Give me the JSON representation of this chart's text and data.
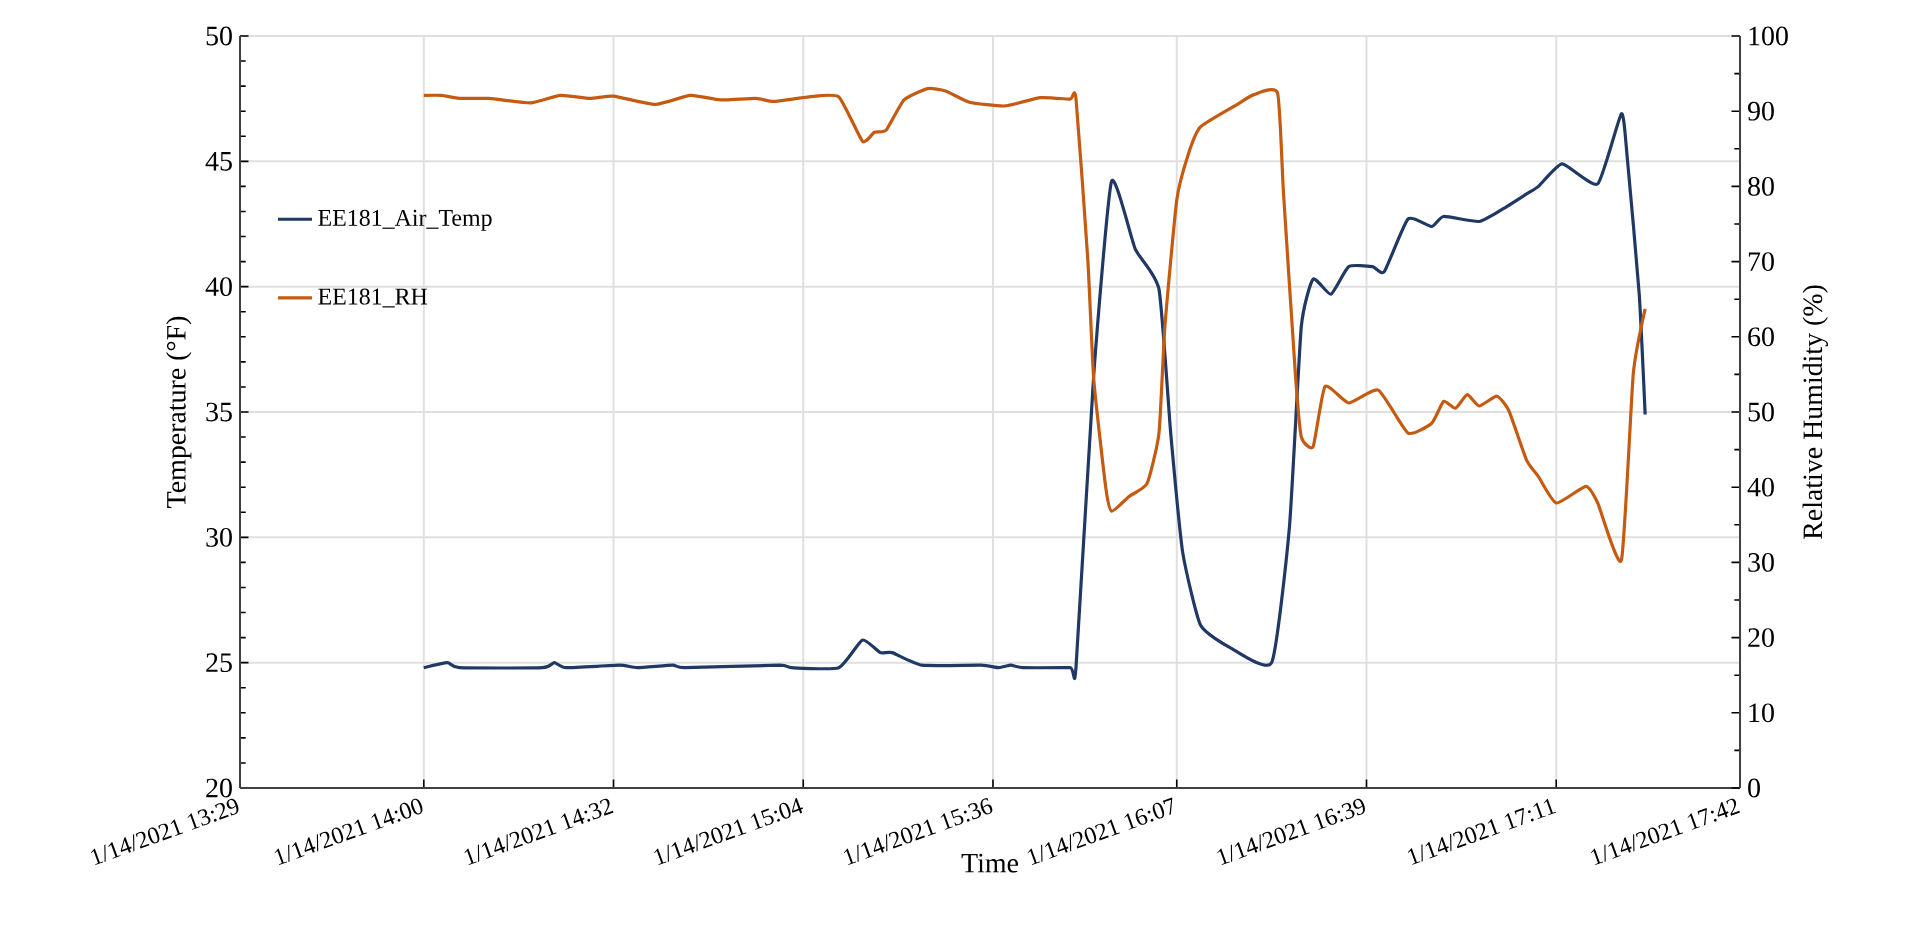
{
  "chart_data": {
    "type": "line",
    "xlabel": "Time",
    "ylabel": "Temperature (°F)",
    "y2label": "Relative Humidity (%)",
    "xlim": [
      "2021-01-14T13:29",
      "2021-01-14T17:42"
    ],
    "xticks": [
      {
        "value": "2021-01-14T13:29",
        "label": "1/14/2021 13:29"
      },
      {
        "value": "2021-01-14T14:00",
        "label": "1/14/2021 14:00"
      },
      {
        "value": "2021-01-14T14:32",
        "label": "1/14/2021 14:32"
      },
      {
        "value": "2021-01-14T15:04",
        "label": "1/14/2021 15:04"
      },
      {
        "value": "2021-01-14T15:36",
        "label": "1/14/2021 15:36"
      },
      {
        "value": "2021-01-14T16:07",
        "label": "1/14/2021 16:07"
      },
      {
        "value": "2021-01-14T16:39",
        "label": "1/14/2021 16:39"
      },
      {
        "value": "2021-01-14T17:11",
        "label": "1/14/2021 17:11"
      },
      {
        "value": "2021-01-14T17:42",
        "label": "1/14/2021 17:42"
      }
    ],
    "ylim": [
      20,
      50
    ],
    "yticks": [
      20,
      25,
      30,
      35,
      40,
      45,
      50
    ],
    "y2lim": [
      0,
      100
    ],
    "y2ticks": [
      0,
      10,
      20,
      30,
      40,
      50,
      60,
      70,
      80,
      90,
      100
    ],
    "grid": true,
    "legend": "left",
    "series": [
      {
        "name": "EE181_Air_Temp",
        "color": "#203864",
        "axis": "y",
        "x": [
          "2021-01-14T14:00",
          "2021-01-14T14:04",
          "2021-01-14T14:06",
          "2021-01-14T14:20",
          "2021-01-14T14:22",
          "2021-01-14T14:24",
          "2021-01-14T14:33",
          "2021-01-14T14:36",
          "2021-01-14T14:42",
          "2021-01-14T14:44",
          "2021-01-14T15:00",
          "2021-01-14T15:02",
          "2021-01-14T15:10",
          "2021-01-14T15:14",
          "2021-01-14T15:17",
          "2021-01-14T15:19",
          "2021-01-14T15:24",
          "2021-01-14T15:34",
          "2021-01-14T15:37",
          "2021-01-14T15:39",
          "2021-01-14T15:41",
          "2021-01-14T15:49",
          "2021-01-14T15:50",
          "2021-01-14T15:53",
          "2021-01-14T15:56",
          "2021-01-14T16:00",
          "2021-01-14T16:04",
          "2021-01-14T16:06",
          "2021-01-14T16:08",
          "2021-01-14T16:11",
          "2021-01-14T16:16",
          "2021-01-14T16:23",
          "2021-01-14T16:26",
          "2021-01-14T16:28",
          "2021-01-14T16:30",
          "2021-01-14T16:33",
          "2021-01-14T16:36",
          "2021-01-14T16:40",
          "2021-01-14T16:42",
          "2021-01-14T16:46",
          "2021-01-14T16:50",
          "2021-01-14T16:52",
          "2021-01-14T16:58",
          "2021-01-14T17:02",
          "2021-01-14T17:06",
          "2021-01-14T17:08",
          "2021-01-14T17:12",
          "2021-01-14T17:18",
          "2021-01-14T17:22",
          "2021-01-14T17:23",
          "2021-01-14T17:25",
          "2021-01-14T17:26"
        ],
        "values": [
          24.8,
          25.0,
          24.8,
          24.8,
          25.0,
          24.8,
          24.9,
          24.8,
          24.9,
          24.8,
          24.9,
          24.8,
          24.8,
          25.9,
          25.4,
          25.4,
          24.9,
          24.9,
          24.8,
          24.9,
          24.8,
          24.8,
          24.8,
          36.5,
          44.2,
          41.5,
          39.9,
          34.1,
          29.4,
          26.5,
          25.6,
          25.0,
          30.4,
          38.4,
          40.3,
          39.7,
          40.8,
          40.8,
          40.6,
          42.7,
          42.4,
          42.8,
          42.6,
          43.1,
          43.7,
          44.0,
          44.9,
          44.1,
          46.9,
          45.1,
          39.7,
          34.9
        ]
      },
      {
        "name": "EE181_RH",
        "color": "#c55a11",
        "axis": "y2",
        "x": [
          "2021-01-14T14:00",
          "2021-01-14T14:03",
          "2021-01-14T14:06",
          "2021-01-14T14:11",
          "2021-01-14T14:18",
          "2021-01-14T14:23",
          "2021-01-14T14:28",
          "2021-01-14T14:32",
          "2021-01-14T14:39",
          "2021-01-14T14:45",
          "2021-01-14T14:50",
          "2021-01-14T14:56",
          "2021-01-14T14:59",
          "2021-01-14T15:05",
          "2021-01-14T15:10",
          "2021-01-14T15:14",
          "2021-01-14T15:16",
          "2021-01-14T15:18",
          "2021-01-14T15:21",
          "2021-01-14T15:25",
          "2021-01-14T15:28",
          "2021-01-14T15:32",
          "2021-01-14T15:38",
          "2021-01-14T15:44",
          "2021-01-14T15:49",
          "2021-01-14T15:50",
          "2021-01-14T15:52",
          "2021-01-14T15:53",
          "2021-01-14T15:55",
          "2021-01-14T15:56",
          "2021-01-14T15:59",
          "2021-01-14T16:02",
          "2021-01-14T16:04",
          "2021-01-14T16:05",
          "2021-01-14T16:07",
          "2021-01-14T16:09",
          "2021-01-14T16:11",
          "2021-01-14T16:17",
          "2021-01-14T16:20",
          "2021-01-14T16:24",
          "2021-01-14T16:25",
          "2021-01-14T16:27",
          "2021-01-14T16:28",
          "2021-01-14T16:30",
          "2021-01-14T16:32",
          "2021-01-14T16:36",
          "2021-01-14T16:41",
          "2021-01-14T16:46",
          "2021-01-14T16:50",
          "2021-01-14T16:52",
          "2021-01-14T16:54",
          "2021-01-14T16:56",
          "2021-01-14T16:58",
          "2021-01-14T17:01",
          "2021-01-14T17:03",
          "2021-01-14T17:06",
          "2021-01-14T17:08",
          "2021-01-14T17:11",
          "2021-01-14T17:16",
          "2021-01-14T17:18",
          "2021-01-14T17:22",
          "2021-01-14T17:24",
          "2021-01-14T17:26"
        ],
        "values": [
          92.1,
          92.1,
          91.7,
          91.7,
          91.1,
          92.1,
          91.7,
          92.0,
          90.9,
          92.1,
          91.5,
          91.7,
          91.3,
          91.9,
          91.9,
          86.0,
          87.2,
          87.5,
          91.5,
          93.0,
          92.7,
          91.2,
          90.7,
          91.8,
          91.6,
          91.7,
          70.2,
          54.3,
          40.1,
          36.8,
          38.8,
          40.5,
          47.2,
          61.4,
          78.2,
          84.4,
          87.9,
          90.8,
          92.2,
          92.4,
          79.1,
          55.1,
          46.7,
          45.4,
          53.4,
          51.2,
          52.9,
          47.2,
          48.5,
          51.4,
          50.5,
          52.3,
          50.8,
          52.1,
          50.2,
          43.6,
          41.4,
          37.9,
          40.1,
          37.9,
          30.3,
          55.1,
          63.7
        ]
      }
    ]
  }
}
